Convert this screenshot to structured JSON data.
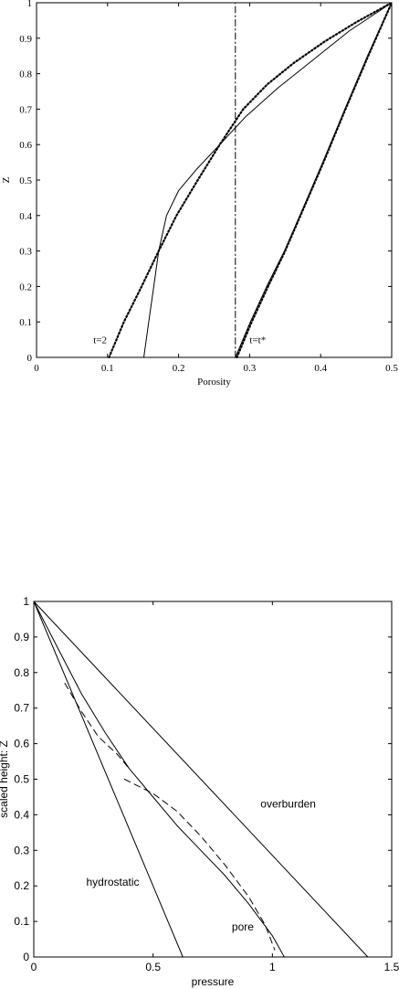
{
  "chart_data": [
    {
      "type": "line",
      "title": "",
      "xlabel": "Porosity",
      "ylabel": "Z",
      "xlim": [
        0,
        0.5
      ],
      "ylim": [
        0,
        1
      ],
      "xticks": [
        0,
        0.1,
        0.2,
        0.3,
        0.4,
        0.5
      ],
      "yticks": [
        0,
        0.1,
        0.2,
        0.3,
        0.4,
        0.5,
        0.6,
        0.7,
        0.8,
        0.9,
        1
      ],
      "xtick_labels": [
        "0",
        "0.1",
        "0.2",
        "0.3",
        "0.4",
        "0.5"
      ],
      "ytick_labels": [
        "0",
        "0.1",
        "0.2",
        "0.3",
        "0.4",
        "0.5",
        "0.6",
        "0.7",
        "0.8",
        "0.9",
        "1"
      ],
      "grid": false,
      "series": [
        {
          "style": "dotted",
          "x": [
            0.102,
            0.123,
            0.148,
            0.172,
            0.197,
            0.227,
            0.258,
            0.291,
            0.325,
            0.362,
            0.405,
            0.45,
            0.5
          ],
          "y": [
            0,
            0.1,
            0.2,
            0.3,
            0.4,
            0.5,
            0.6,
            0.7,
            0.77,
            0.83,
            0.89,
            0.945,
            1
          ]
        },
        {
          "style": "solid",
          "x": [
            0.151,
            0.158,
            0.165,
            0.172,
            0.183,
            0.2,
            0.225,
            0.258,
            0.295,
            0.34,
            0.39,
            0.44,
            0.5
          ],
          "y": [
            0,
            0.1,
            0.2,
            0.3,
            0.4,
            0.47,
            0.53,
            0.6,
            0.68,
            0.76,
            0.84,
            0.92,
            1
          ]
        },
        {
          "style": "dotted",
          "x": [
            0.282,
            0.303,
            0.326,
            0.35,
            0.376,
            0.404,
            0.435,
            0.467,
            0.5
          ],
          "y": [
            0,
            0.1,
            0.2,
            0.3,
            0.42,
            0.55,
            0.7,
            0.85,
            1
          ]
        },
        {
          "style": "solid",
          "x": [
            0.28,
            0.301,
            0.324,
            0.349,
            0.375,
            0.403,
            0.434,
            0.466,
            0.5
          ],
          "y": [
            0,
            0.1,
            0.2,
            0.3,
            0.42,
            0.55,
            0.7,
            0.85,
            1
          ]
        },
        {
          "style": "dashdot",
          "x": [
            0.28,
            0.28
          ],
          "y": [
            0,
            1
          ]
        }
      ],
      "annotations": [
        {
          "text": "t=2",
          "x": 0.08,
          "y": 0.04
        },
        {
          "text": "t=t*",
          "x": 0.3,
          "y": 0.04
        }
      ]
    },
    {
      "type": "line",
      "title": "",
      "xlabel": "pressure",
      "ylabel": "scaled height: Z",
      "xlim": [
        0,
        1.5
      ],
      "ylim": [
        0,
        1
      ],
      "xticks": [
        0,
        0.5,
        1,
        1.5
      ],
      "yticks": [
        0,
        0.1,
        0.2,
        0.3,
        0.4,
        0.5,
        0.6,
        0.7,
        0.8,
        0.9,
        1
      ],
      "xtick_labels": [
        "0",
        "0.5",
        "1",
        "1.5"
      ],
      "ytick_labels": [
        "0",
        "0.1",
        "0.2",
        "0.3",
        "0.4",
        "0.5",
        "0.6",
        "0.7",
        "0.8",
        "0.9",
        "1"
      ],
      "grid": false,
      "series": [
        {
          "name": "overburden",
          "style": "solid",
          "x": [
            0,
            1.4
          ],
          "y": [
            1,
            0
          ]
        },
        {
          "name": "hydrostatic",
          "style": "solid",
          "x": [
            0,
            0.625
          ],
          "y": [
            1,
            0
          ]
        },
        {
          "name": "pore",
          "style": "solid",
          "x": [
            0,
            0.1,
            0.2,
            0.3,
            0.4,
            0.5,
            0.6,
            0.7,
            0.8,
            0.9,
            1.0,
            1.05
          ],
          "y": [
            1,
            0.87,
            0.74,
            0.63,
            0.53,
            0.45,
            0.37,
            0.3,
            0.23,
            0.15,
            0.06,
            0
          ]
        },
        {
          "style": "dashed",
          "x": [
            0.13,
            0.2,
            0.27,
            0.35,
            0.4
          ],
          "y": [
            0.77,
            0.69,
            0.62,
            0.57,
            0.53
          ]
        },
        {
          "style": "dashed",
          "x": [
            0.38,
            0.5,
            0.6,
            0.7,
            0.8,
            0.9,
            0.97,
            1.01
          ],
          "y": [
            0.5,
            0.46,
            0.41,
            0.34,
            0.26,
            0.17,
            0.09,
            0.02
          ]
        }
      ],
      "annotations": [
        {
          "text": "overburden",
          "x": 0.95,
          "y": 0.42
        },
        {
          "text": "hydrostatic",
          "x": 0.22,
          "y": 0.2
        },
        {
          "text": "pore",
          "x": 0.83,
          "y": 0.075
        }
      ]
    }
  ]
}
